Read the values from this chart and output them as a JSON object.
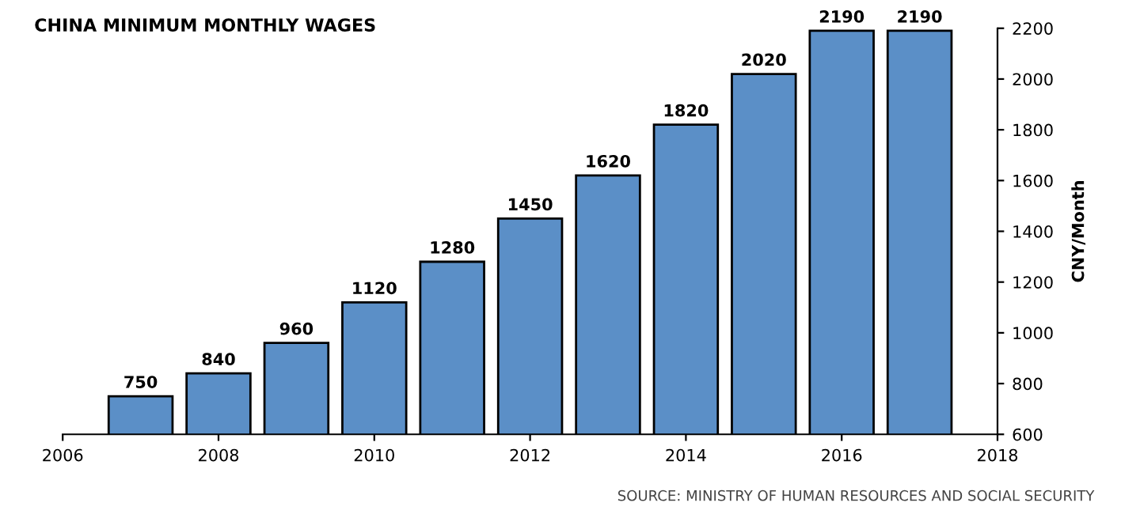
{
  "chart_data": {
    "type": "bar",
    "title": "CHINA MINIMUM MONTHLY WAGES",
    "ylabel": "CNY/Month",
    "x": [
      2007,
      2008,
      2009,
      2010,
      2011,
      2012,
      2013,
      2014,
      2015,
      2016,
      2017
    ],
    "values": [
      750,
      840,
      960,
      1120,
      1280,
      1450,
      1620,
      1820,
      2020,
      2190,
      2190
    ],
    "color": "#5b8fc7",
    "data_labels": true,
    "xlim": [
      2006,
      2018
    ],
    "xticks": [
      2006,
      2008,
      2010,
      2012,
      2014,
      2016,
      2018
    ],
    "ylim": [
      600,
      2200
    ],
    "yticks": [
      600,
      800,
      1000,
      1200,
      1400,
      1600,
      1800,
      2000,
      2200
    ],
    "grid": false,
    "legend": false,
    "annotations": [
      "SOURCE: MINISTRY OF HUMAN RESOURCES AND SOCIAL SECURITY"
    ]
  }
}
